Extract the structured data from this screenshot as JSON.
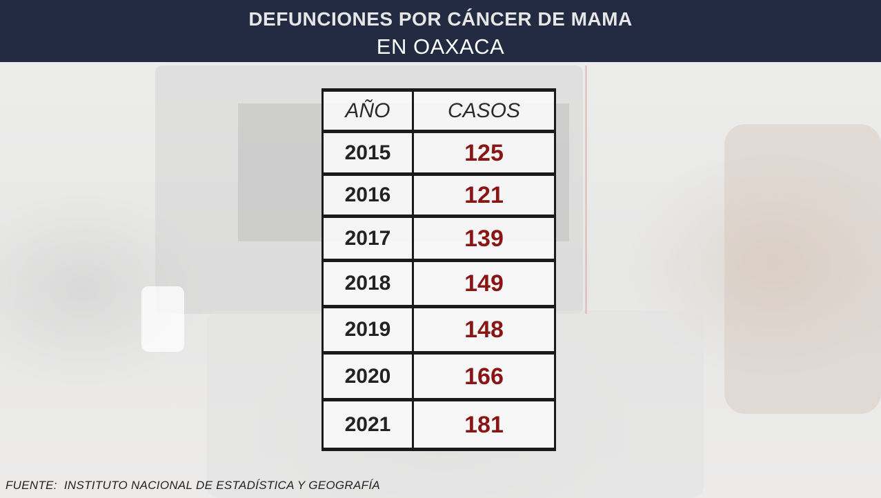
{
  "header": {
    "title": "DEFUNCIONES POR CÁNCER DE MAMA",
    "subtitle": "EN OAXACA"
  },
  "chart_data": {
    "type": "table",
    "columns": [
      "AÑO",
      "CASOS"
    ],
    "rows": [
      {
        "year": "2015",
        "cases": 125
      },
      {
        "year": "2016",
        "cases": 121
      },
      {
        "year": "2017",
        "cases": 139
      },
      {
        "year": "2018",
        "cases": 149
      },
      {
        "year": "2019",
        "cases": 148
      },
      {
        "year": "2020",
        "cases": 166
      },
      {
        "year": "2021",
        "cases": 181
      }
    ],
    "colors": {
      "value": "#8a1515",
      "year": "#222222",
      "header_bar": "#232b42"
    }
  },
  "footer": {
    "source": "FUENTE:  INSTITUTO NACIONAL DE ESTADÍSTICA Y GEOGRAFÍA"
  }
}
